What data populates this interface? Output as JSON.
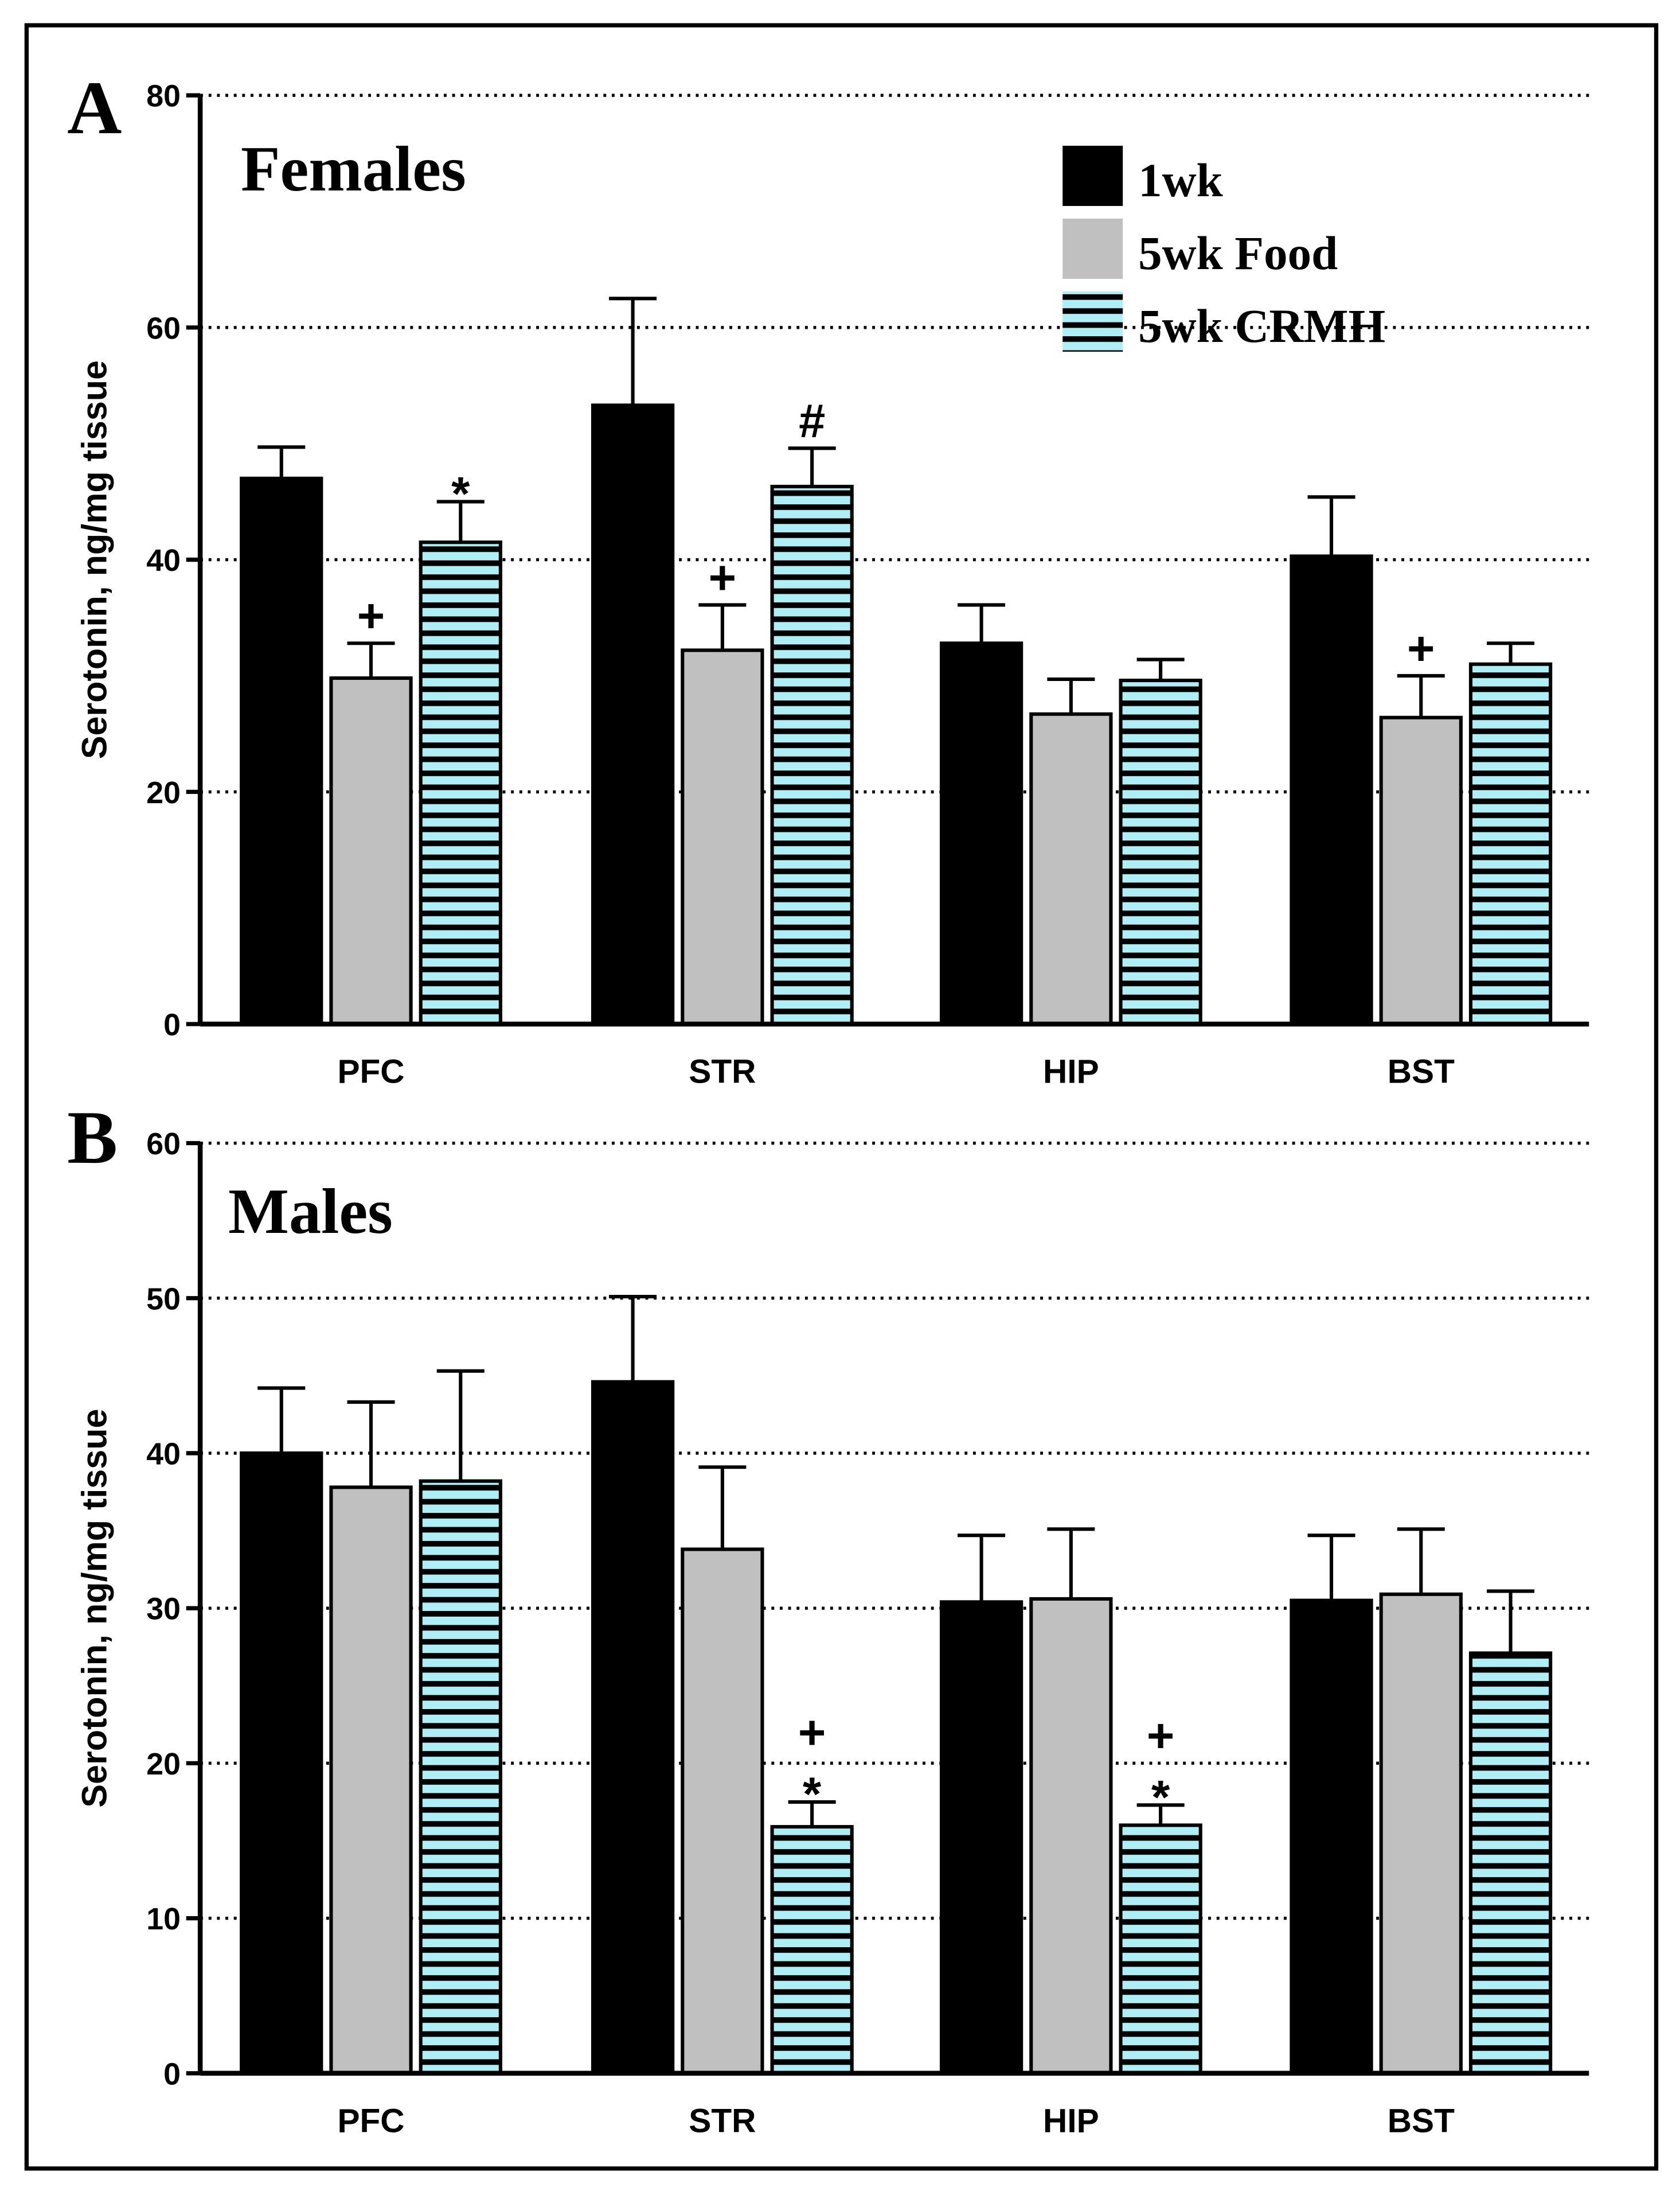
{
  "colors": {
    "1wk": "#000000",
    "5wk Food": "#c0c0c0",
    "5wk CRMH": "#aeeef4",
    "stripe": "#000000"
  },
  "legend": [
    "1wk",
    "5wk Food",
    "5wk CRMH"
  ],
  "chart_data": [
    {
      "type": "bar",
      "panel_label": "A",
      "title": "Females",
      "ylabel": "Serotonin, ng/mg tissue",
      "xlabel": "",
      "ylim": [
        0,
        80
      ],
      "yticks": [
        0,
        20,
        40,
        60,
        80
      ],
      "grid": true,
      "legend_position": "top-right",
      "categories": [
        "PFC",
        "STR",
        "HIP",
        "BST"
      ],
      "series": [
        {
          "name": "1wk",
          "values": [
            47.0,
            53.3,
            32.8,
            40.3
          ],
          "errors": [
            2.7,
            9.2,
            3.3,
            5.1
          ]
        },
        {
          "name": "5wk Food",
          "values": [
            29.8,
            32.2,
            26.7,
            26.4
          ],
          "errors": [
            3.0,
            3.9,
            3.0,
            3.6
          ]
        },
        {
          "name": "5wk CRMH",
          "values": [
            41.5,
            46.3,
            29.6,
            31.0
          ],
          "errors": [
            3.5,
            3.3,
            1.8,
            1.8
          ]
        }
      ],
      "annotations": [
        {
          "category": "PFC",
          "series": "5wk Food",
          "text": "+"
        },
        {
          "category": "PFC",
          "series": "5wk CRMH",
          "text": "*"
        },
        {
          "category": "STR",
          "series": "5wk Food",
          "text": "+"
        },
        {
          "category": "STR",
          "series": "5wk CRMH",
          "text": "#"
        },
        {
          "category": "BST",
          "series": "5wk Food",
          "text": "+"
        }
      ]
    },
    {
      "type": "bar",
      "panel_label": "B",
      "title": "Males",
      "ylabel": "Serotonin, ng/mg tissue",
      "xlabel": "",
      "ylim": [
        0,
        60
      ],
      "yticks": [
        0,
        10,
        20,
        30,
        40,
        50,
        60
      ],
      "grid": true,
      "categories": [
        "PFC",
        "STR",
        "HIP",
        "BST"
      ],
      "series": [
        {
          "name": "1wk",
          "values": [
            40.0,
            44.6,
            30.4,
            30.5
          ],
          "errors": [
            4.2,
            5.5,
            4.3,
            4.2
          ]
        },
        {
          "name": "5wk Food",
          "values": [
            37.8,
            33.8,
            30.6,
            30.9
          ],
          "errors": [
            5.5,
            5.3,
            4.5,
            4.2
          ]
        },
        {
          "name": "5wk CRMH",
          "values": [
            38.2,
            15.9,
            16.0,
            27.1
          ],
          "errors": [
            7.1,
            1.6,
            1.3,
            4.0
          ]
        }
      ],
      "annotations": [
        {
          "category": "STR",
          "series": "5wk CRMH",
          "text": "+ *"
        },
        {
          "category": "HIP",
          "series": "5wk CRMH",
          "text": "+ *"
        }
      ]
    }
  ]
}
